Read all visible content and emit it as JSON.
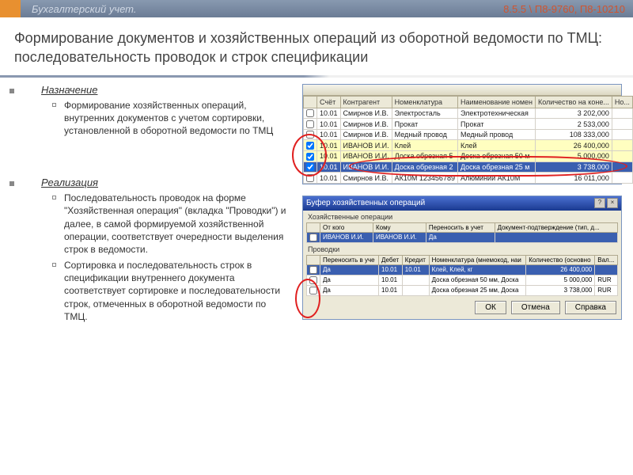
{
  "header": {
    "title": "Бухгалтерский учет.",
    "version": "8.5.5 \\ П8-9760, П8-10210"
  },
  "heading": "Формирование  документов и хозяйственных операций из оборотной ведомости по ТМЦ: последовательность проводок и строк спецификации",
  "sections": {
    "purpose": {
      "label": "Назначение",
      "text": "Формирование хозяйственных операций, внутренних документов с учетом сортировки, установленной в оборотной ведомости по ТМЦ"
    },
    "impl": {
      "label": "Реализация",
      "items": [
        "Последовательность проводок на форме \"Хозяйственная операция\" (вкладка \"Проводки\") и далее, в самой формируемой хозяйственной операции, соответствует очередности выделения строк в ведомости.",
        "Сортировка и последовательность строк в спецификации внутреннего документа соответствует сортировке и последовательности строк, отмеченных в оборотной ведомости по ТМЦ."
      ]
    }
  },
  "grid1": {
    "columns": [
      "",
      "Счёт",
      "Контрагент",
      "Номенклатура",
      "Наименование номен",
      "Количество на коне...",
      "Но..."
    ],
    "rows": [
      {
        "chk": false,
        "acc": "10.01",
        "agent": "Смирнов И.В.",
        "nom": "Электросталь",
        "name": "Электротехническая",
        "qty": "3 202,000",
        "sel": false
      },
      {
        "chk": false,
        "acc": "10.01",
        "agent": "Смирнов И.В.",
        "nom": "Прокат",
        "name": "Прокат",
        "qty": "2 533,000",
        "sel": false
      },
      {
        "chk": false,
        "acc": "10.01",
        "agent": "Смирнов И.В.",
        "nom": "Медный провод",
        "name": "Медный провод",
        "qty": "108 333,000",
        "sel": false
      },
      {
        "chk": true,
        "acc": "10.01",
        "agent": "ИВАНОВ И.И.",
        "nom": "Клей",
        "name": "Клей",
        "qty": "26 400,000",
        "sel": false,
        "hl": true
      },
      {
        "chk": true,
        "acc": "10.01",
        "agent": "ИВАНОВ И.И.",
        "nom": "Доска обрезная 5",
        "name": "Доска обрезная 50 м",
        "qty": "5 000,000",
        "sel": false,
        "hl": true
      },
      {
        "chk": true,
        "acc": "10.01",
        "agent": "ИВАНОВ И.И.",
        "nom": "Доска обрезная 2",
        "name": "Доска обрезная 25 м",
        "qty": "3 738,000",
        "sel": true
      },
      {
        "chk": false,
        "acc": "10.01",
        "agent": "Смирнов И.В.",
        "nom": "АК10М 123456789",
        "name": "Алюминий АК10М",
        "qty": "16 011,000",
        "sel": false
      }
    ]
  },
  "win2": {
    "title": "Буфер хозяйственных операций",
    "group1_label": "Хозяйственные операции",
    "ops": {
      "columns": [
        "",
        "От кого",
        "Кому",
        "Переносить в учет",
        "Документ-подтверждение (тип, д..."
      ],
      "rows": [
        {
          "from": "ИВАНОВ И.И.",
          "to": "ИВАНОВ И.И.",
          "carry": "Да",
          "doc": ""
        }
      ]
    },
    "group2_label": "Проводки",
    "entries": {
      "columns": [
        "",
        "Переносить в уче",
        "Дебет",
        "Кредит",
        "Номенклатура (мнемокод, наи",
        "Количество (основно",
        "Вал..."
      ],
      "rows": [
        {
          "carry": "Да",
          "dt": "10.01",
          "kt": "10.01",
          "nom": "Клей, Клей, кг",
          "qty": "26 400,000",
          "cur": "",
          "sel": true
        },
        {
          "carry": "Да",
          "dt": "10.01",
          "kt": "",
          "nom": "Доска обрезная 50 мм, Доска ",
          "qty": "5 000,000",
          "cur": "RUR"
        },
        {
          "carry": "Да",
          "dt": "10.01",
          "kt": "",
          "nom": "Доска обрезная 25 мм, Доска ",
          "qty": "3 738,000",
          "cur": "RUR"
        }
      ]
    },
    "buttons": {
      "ok": "ОК",
      "cancel": "Отмена",
      "help": "Справка"
    }
  },
  "colors": {
    "accent": "#e89030",
    "select_bg": "#3a5fb0",
    "highlight_bg": "#fffec0",
    "mark": "#e02020"
  }
}
